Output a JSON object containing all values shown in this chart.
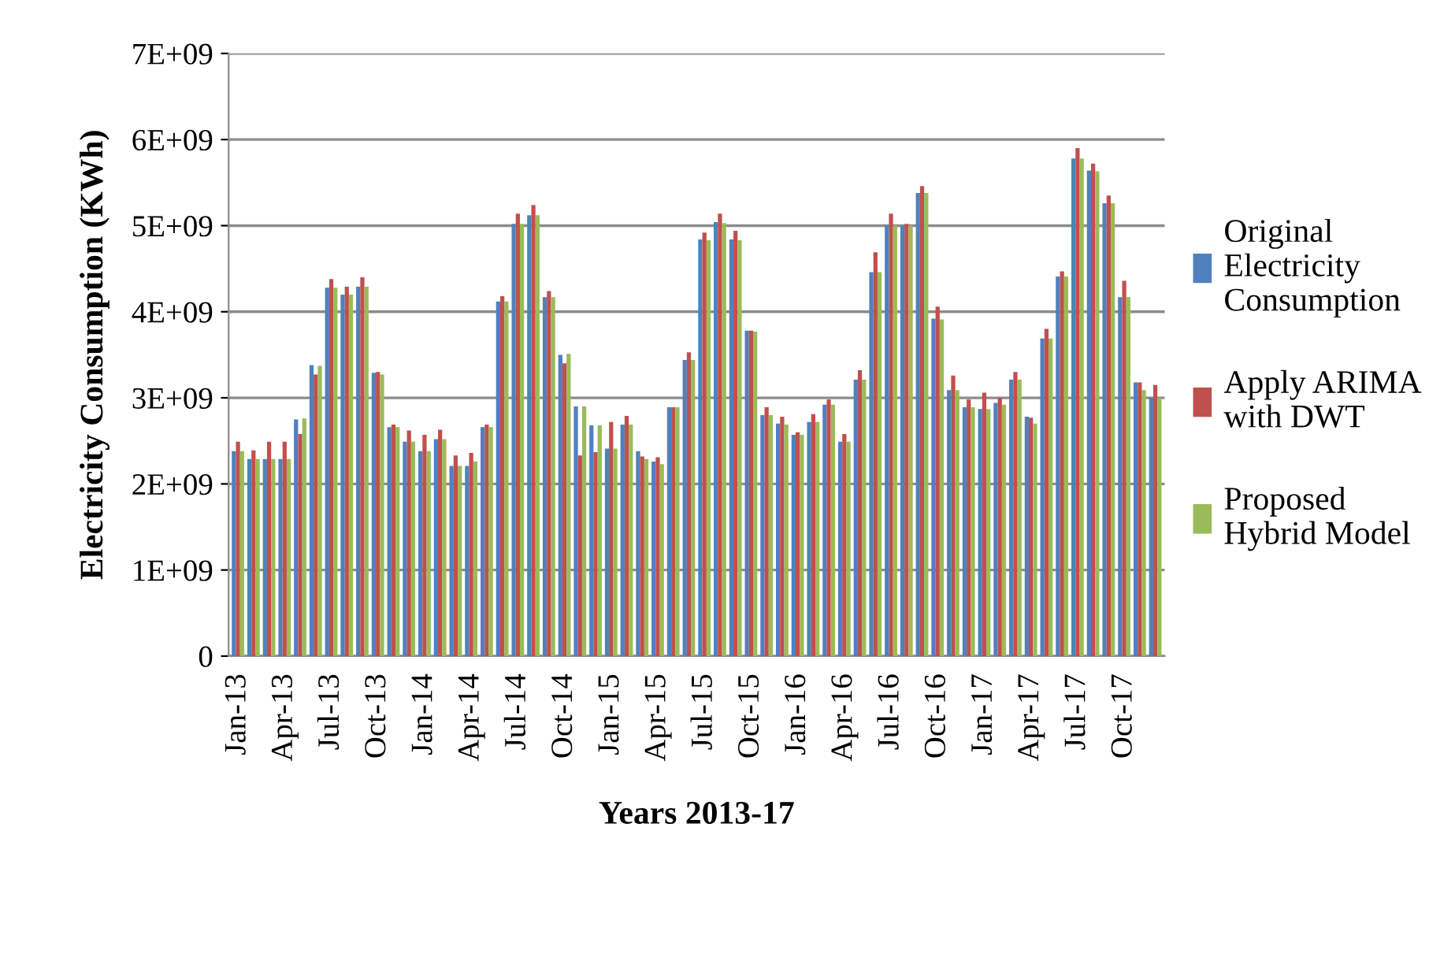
{
  "chart_data": {
    "type": "bar",
    "xlabel": "Years 2013-17",
    "ylabel": "Electricity Consumption (KWh)",
    "categories": [
      "Jan-13",
      null,
      null,
      "Apr-13",
      null,
      null,
      "Jul-13",
      null,
      null,
      "Oct-13",
      null,
      null,
      "Jan-14",
      null,
      null,
      "Apr-14",
      null,
      null,
      "Jul-14",
      null,
      null,
      "Oct-14",
      null,
      null,
      "Jan-15",
      null,
      null,
      "Apr-15",
      null,
      null,
      "Jul-15",
      null,
      null,
      "Oct-15",
      null,
      null,
      "Jan-16",
      null,
      null,
      "Apr-16",
      null,
      null,
      "Jul-16",
      null,
      null,
      "Oct-16",
      null,
      null,
      "Jan-17",
      null,
      null,
      "Apr-17",
      null,
      null,
      "Jul-17",
      null,
      null,
      "Oct-17",
      null,
      null
    ],
    "series": [
      {
        "name": "Original Electricity Consumption",
        "color": "#4f81bd",
        "values": [
          2380000000.0,
          2290000000.0,
          2290000000.0,
          2290000000.0,
          2750000000.0,
          3380000000.0,
          4280000000.0,
          4200000000.0,
          4290000000.0,
          3290000000.0,
          2660000000.0,
          2490000000.0,
          2380000000.0,
          2520000000.0,
          2210000000.0,
          2210000000.0,
          2660000000.0,
          4120000000.0,
          5020000000.0,
          5120000000.0,
          4170000000.0,
          3500000000.0,
          2900000000.0,
          2680000000.0,
          2410000000.0,
          2690000000.0,
          2380000000.0,
          2260000000.0,
          2890000000.0,
          3440000000.0,
          4840000000.0,
          5040000000.0,
          4840000000.0,
          3780000000.0,
          2800000000.0,
          2700000000.0,
          2570000000.0,
          2720000000.0,
          2920000000.0,
          2490000000.0,
          3210000000.0,
          4460000000.0,
          5000000000.0,
          5000000000.0,
          5380000000.0,
          3920000000.0,
          3090000000.0,
          2890000000.0,
          2870000000.0,
          2940000000.0,
          3210000000.0,
          2780000000.0,
          3690000000.0,
          4410000000.0,
          5780000000.0,
          5640000000.0,
          5260000000.0,
          4170000000.0,
          3180000000.0,
          3000000000.0
        ]
      },
      {
        "name": "Apply ARIMA with DWT",
        "color": "#c0504d",
        "values": [
          2490000000.0,
          2390000000.0,
          2490000000.0,
          2490000000.0,
          2580000000.0,
          3270000000.0,
          4380000000.0,
          4290000000.0,
          4400000000.0,
          3300000000.0,
          2690000000.0,
          2620000000.0,
          2570000000.0,
          2630000000.0,
          2330000000.0,
          2360000000.0,
          2690000000.0,
          4180000000.0,
          5140000000.0,
          5240000000.0,
          4240000000.0,
          3400000000.0,
          2330000000.0,
          2370000000.0,
          2720000000.0,
          2790000000.0,
          2320000000.0,
          2310000000.0,
          2890000000.0,
          3530000000.0,
          4920000000.0,
          5140000000.0,
          4940000000.0,
          3780000000.0,
          2890000000.0,
          2780000000.0,
          2600000000.0,
          2810000000.0,
          2980000000.0,
          2580000000.0,
          3320000000.0,
          4690000000.0,
          5140000000.0,
          5020000000.0,
          5460000000.0,
          4060000000.0,
          3260000000.0,
          2980000000.0,
          3060000000.0,
          3000000000.0,
          3300000000.0,
          2770000000.0,
          3800000000.0,
          4470000000.0,
          5900000000.0,
          5720000000.0,
          5350000000.0,
          4360000000.0,
          3180000000.0,
          3150000000.0
        ]
      },
      {
        "name": "Proposed Hybrid Model",
        "color": "#9bbb59",
        "values": [
          2380000000.0,
          2290000000.0,
          2290000000.0,
          2290000000.0,
          2760000000.0,
          3370000000.0,
          4280000000.0,
          4200000000.0,
          4290000000.0,
          3270000000.0,
          2660000000.0,
          2490000000.0,
          2380000000.0,
          2520000000.0,
          2210000000.0,
          2260000000.0,
          2660000000.0,
          4120000000.0,
          5020000000.0,
          5120000000.0,
          4170000000.0,
          3510000000.0,
          2900000000.0,
          2680000000.0,
          2410000000.0,
          2690000000.0,
          2290000000.0,
          2230000000.0,
          2890000000.0,
          3440000000.0,
          4830000000.0,
          5030000000.0,
          4830000000.0,
          3770000000.0,
          2800000000.0,
          2690000000.0,
          2570000000.0,
          2720000000.0,
          2920000000.0,
          2490000000.0,
          3210000000.0,
          4460000000.0,
          5000000000.0,
          5000000000.0,
          5380000000.0,
          3910000000.0,
          3090000000.0,
          2890000000.0,
          2870000000.0,
          2920000000.0,
          3210000000.0,
          2700000000.0,
          3690000000.0,
          4410000000.0,
          5780000000.0,
          5630000000.0,
          5260000000.0,
          4170000000.0,
          3090000000.0,
          3000000000.0
        ]
      }
    ],
    "ylim": [
      0,
      7000000000.0
    ],
    "yticks": [
      0,
      {
        "value": 1000000000.0,
        "label": "1E+09"
      },
      {
        "value": 2000000000.0,
        "label": "2E+09"
      },
      {
        "value": 3000000000.0,
        "label": "3E+09"
      },
      {
        "value": 4000000000.0,
        "label": "4E+09"
      },
      {
        "value": 5000000000.0,
        "label": "5E+09"
      },
      {
        "value": 6000000000.0,
        "label": "6E+09"
      },
      {
        "value": 7000000000.0,
        "label": "7E+09"
      }
    ],
    "grid": "y",
    "legend": "right"
  }
}
